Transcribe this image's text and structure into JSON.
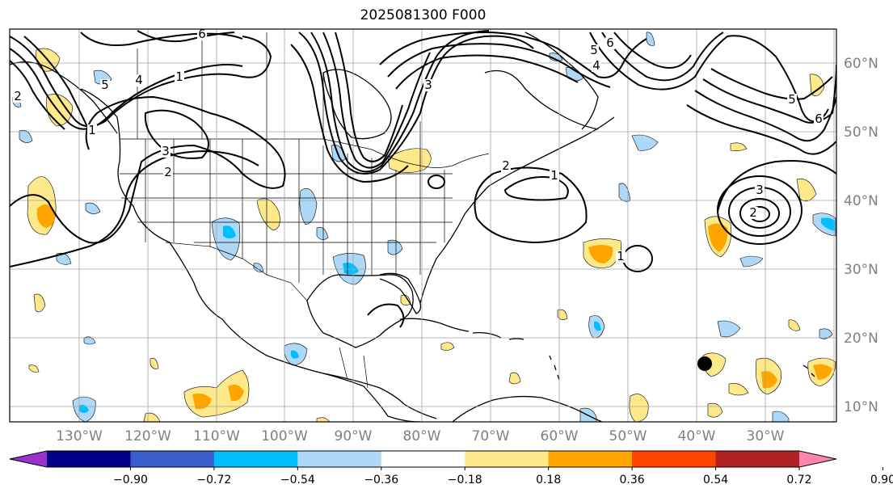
{
  "title": "2025081300 F000",
  "lon_labels": [
    "130°W",
    "120°W",
    "110°W",
    "100°W",
    "90°W",
    "80°W",
    "70°W",
    "60°W",
    "50°W",
    "40°W",
    "30°W"
  ],
  "lat_labels": [
    "60°N",
    "50°N",
    "40°N",
    "30°N",
    "20°N",
    "10°N"
  ],
  "colorbar": {
    "tick_labels": [
      "−0.90",
      "−0.72",
      "−0.54",
      "−0.36",
      "−0.18",
      "0.18",
      "0.36",
      "0.54",
      "0.72",
      "0.90"
    ],
    "colors": [
      "#9932cc",
      "#00008b",
      "#3a5fcd",
      "#00bfff",
      "#add8f7",
      "#ffffff",
      "#fee98a",
      "#ffa500",
      "#ff4500",
      "#b22222",
      "#ff85ae"
    ]
  },
  "shading_colors": {
    "light_yellow": "#fee98a",
    "orange": "#ffa500",
    "light_blue": "#add8f7",
    "blue": "#00bfff"
  },
  "contour_labels": [
    "6",
    "5",
    "4",
    "1",
    "2",
    "3",
    "2",
    "1",
    "6",
    "5",
    "4",
    "3",
    "2",
    "1",
    "2",
    "1",
    "3",
    "5",
    "6"
  ]
}
